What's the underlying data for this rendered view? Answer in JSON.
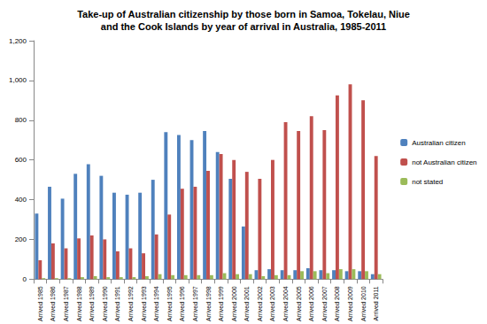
{
  "chart_data": {
    "type": "bar",
    "title": "Take-up of Australian citizenship by those born in Samoa, Tokelau, Niue\nand the Cook Islands by year of arrival in Australia, 1985-2011",
    "categories": [
      "Arrived 1985",
      "Arrived 1986",
      "Arrived 1987",
      "Arrived 1988",
      "Arrived 1989",
      "Arrived 1990",
      "Arrived 1991",
      "Arrived 1992",
      "Arrived 1993",
      "Arrived 1994",
      "Arrived 1995",
      "Arrived 1996",
      "Arrived 1997",
      "Arrived 1998",
      "Arrived 1999",
      "Arrived 2000",
      "Arrived 2001",
      "Arrived 2002",
      "Arrived 2003",
      "Arrived 2004",
      "Arrived 2005",
      "Arrived 2006",
      "Arrived 2007",
      "Arrived 2008",
      "Arrived 2009",
      "Arrived 2010",
      "Arrived 2011"
    ],
    "series": [
      {
        "name": "Australian citizen",
        "color": "#4f81bd",
        "values": [
          330,
          465,
          405,
          530,
          578,
          520,
          435,
          425,
          435,
          500,
          740,
          725,
          700,
          745,
          640,
          505,
          265,
          45,
          50,
          45,
          45,
          55,
          45,
          45,
          40,
          40,
          25
        ]
      },
      {
        "name": "not Australian citizen",
        "color": "#c0504d",
        "values": [
          95,
          180,
          155,
          205,
          220,
          200,
          140,
          155,
          130,
          225,
          325,
          455,
          465,
          545,
          630,
          600,
          540,
          505,
          600,
          790,
          745,
          820,
          750,
          925,
          980,
          900,
          620
        ]
      },
      {
        "name": "not stated",
        "color": "#9bbb59",
        "values": [
          5,
          5,
          5,
          10,
          15,
          10,
          10,
          10,
          15,
          25,
          20,
          20,
          20,
          20,
          30,
          25,
          25,
          15,
          20,
          20,
          40,
          40,
          30,
          50,
          50,
          40,
          25
        ]
      }
    ],
    "ylim": [
      0,
      1200
    ],
    "yticks": [
      0,
      200,
      400,
      600,
      800,
      1000,
      1200
    ],
    "grid": false,
    "legend": "right"
  }
}
